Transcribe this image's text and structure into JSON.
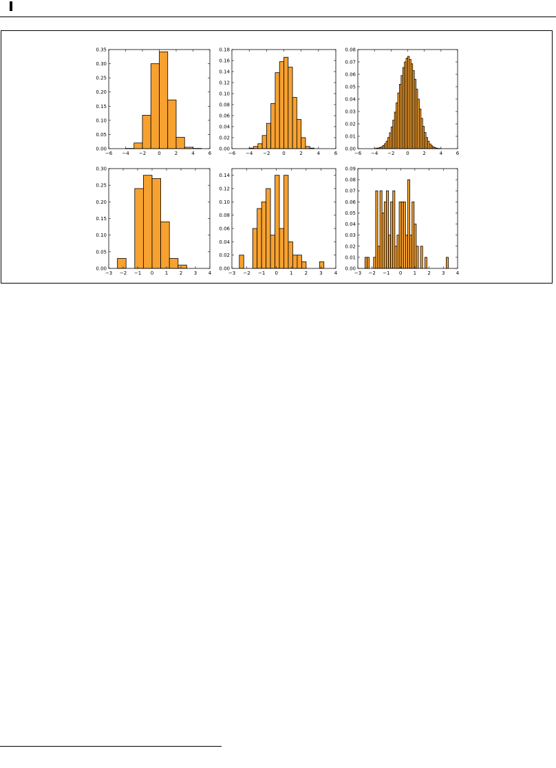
{
  "style": {
    "bar_fill": "#f7a130",
    "bar_stroke": "#000000",
    "axes_color": "#000000"
  },
  "chart_data": [
    {
      "type": "bar",
      "subtype": "histogram",
      "xlim": [
        -6,
        6
      ],
      "ylim": [
        0,
        0.35
      ],
      "xticks": [
        -6,
        -4,
        -2,
        0,
        2,
        4,
        6
      ],
      "yticks": [
        0.0,
        0.05,
        0.1,
        0.15,
        0.2,
        0.25,
        0.3,
        0.35
      ],
      "bin_edges": [
        -6,
        -5,
        -4,
        -3,
        -2,
        -1,
        0,
        1,
        2,
        3,
        4,
        5
      ],
      "values": [
        0,
        0,
        0.001,
        0.02,
        0.118,
        0.3,
        0.342,
        0.172,
        0.04,
        0.005,
        0.001
      ],
      "grid": false
    },
    {
      "type": "bar",
      "subtype": "histogram",
      "xlim": [
        -6,
        6
      ],
      "ylim": [
        0,
        0.18
      ],
      "xticks": [
        -6,
        -4,
        -2,
        0,
        2,
        4,
        6
      ],
      "yticks": [
        0.0,
        0.02,
        0.04,
        0.06,
        0.08,
        0.1,
        0.12,
        0.14,
        0.16,
        0.18
      ],
      "bin_edges": [
        -4.5,
        -4,
        -3.5,
        -3,
        -2.5,
        -2,
        -1.5,
        -1,
        -0.5,
        0,
        0.5,
        1,
        1.5,
        2,
        2.5,
        3,
        3.5
      ],
      "values": [
        0,
        0.001,
        0.004,
        0.009,
        0.024,
        0.046,
        0.082,
        0.138,
        0.158,
        0.166,
        0.148,
        0.093,
        0.053,
        0.02,
        0.004,
        0.001
      ],
      "grid": false
    },
    {
      "type": "bar",
      "subtype": "histogram",
      "xlim": [
        -6,
        6
      ],
      "ylim": [
        0,
        0.08
      ],
      "xticks": [
        -6,
        -4,
        -2,
        0,
        2,
        4,
        6
      ],
      "yticks": [
        0.0,
        0.01,
        0.02,
        0.03,
        0.04,
        0.05,
        0.06,
        0.07,
        0.08
      ],
      "bin_edges": [
        -4,
        -3.8,
        -3.6,
        -3.4,
        -3.2,
        -3,
        -2.8,
        -2.6,
        -2.4,
        -2.2,
        -2,
        -1.8,
        -1.6,
        -1.4,
        -1.2,
        -1,
        -0.8,
        -0.6,
        -0.4,
        -0.2,
        0,
        0.2,
        0.4,
        0.6,
        0.8,
        1,
        1.2,
        1.4,
        1.6,
        1.8,
        2,
        2.2,
        2.4,
        2.6,
        2.8,
        3,
        3.2,
        3.4,
        3.6,
        3.8,
        4
      ],
      "values": [
        0.0002,
        0.0004,
        0.0006,
        0.001,
        0.0016,
        0.0026,
        0.004,
        0.006,
        0.009,
        0.0128,
        0.0175,
        0.023,
        0.0295,
        0.037,
        0.045,
        0.052,
        0.059,
        0.0655,
        0.07,
        0.073,
        0.0745,
        0.072,
        0.0685,
        0.063,
        0.056,
        0.048,
        0.04,
        0.032,
        0.0245,
        0.018,
        0.013,
        0.009,
        0.006,
        0.0038,
        0.0024,
        0.0014,
        0.0008,
        0.0004,
        0.0002,
        0.0001
      ],
      "grid": false
    },
    {
      "type": "bar",
      "subtype": "histogram",
      "xlim": [
        -3,
        4
      ],
      "ylim": [
        0,
        0.3
      ],
      "xticks": [
        -3,
        -2,
        -1,
        0,
        1,
        2,
        3,
        4
      ],
      "yticks": [
        0.0,
        0.05,
        0.1,
        0.15,
        0.2,
        0.25,
        0.3
      ],
      "bin_edges": [
        -2.4,
        -1.8,
        -1.2,
        -0.6,
        0.0,
        0.6,
        1.2,
        1.8,
        2.4,
        3.0,
        3.6
      ],
      "values": [
        0.03,
        0,
        0.24,
        0.28,
        0.27,
        0.14,
        0.03,
        0.01,
        0,
        0
      ],
      "note_values": "bin sequence as drawn",
      "grid": false
    },
    {
      "type": "bar",
      "subtype": "histogram",
      "xlim": [
        -3,
        4
      ],
      "ylim": [
        0,
        0.15
      ],
      "xticks": [
        -3,
        -2,
        -1,
        0,
        1,
        2,
        3,
        4
      ],
      "yticks": [
        0.0,
        0.02,
        0.04,
        0.06,
        0.08,
        0.1,
        0.12,
        0.14
      ],
      "bin_edges": [
        -2.5,
        -2.2,
        -1.9,
        -1.6,
        -1.3,
        -1.0,
        -0.7,
        -0.4,
        -0.1,
        0.2,
        0.5,
        0.8,
        1.1,
        1.4,
        1.7,
        2.0,
        2.3,
        2.6,
        2.9,
        3.2,
        3.5
      ],
      "values": [
        0.02,
        0,
        0,
        0.06,
        0.09,
        0.1,
        0.12,
        0.05,
        0.14,
        0.06,
        0.14,
        0.04,
        0.02,
        0.02,
        0.01,
        0,
        0,
        0,
        0.01,
        0
      ],
      "grid": false
    },
    {
      "type": "bar",
      "subtype": "histogram",
      "xlim": [
        -3,
        4
      ],
      "ylim": [
        0,
        0.09
      ],
      "xticks": [
        -3,
        -2,
        -1,
        0,
        1,
        2,
        3,
        4
      ],
      "yticks": [
        0.0,
        0.01,
        0.02,
        0.03,
        0.04,
        0.05,
        0.06,
        0.07,
        0.08,
        0.09
      ],
      "bin_edges": [
        -2.5,
        -2.35,
        -2.2,
        -2.05,
        -1.9,
        -1.75,
        -1.6,
        -1.45,
        -1.3,
        -1.15,
        -1.0,
        -0.85,
        -0.7,
        -0.55,
        -0.4,
        -0.25,
        -0.1,
        0.05,
        0.2,
        0.35,
        0.5,
        0.65,
        0.8,
        0.95,
        1.1,
        1.25,
        1.4,
        1.55,
        1.7,
        1.85,
        2.0,
        2.15,
        2.3,
        2.45,
        2.6,
        2.75,
        2.9,
        3.05,
        3.2,
        3.35,
        3.5
      ],
      "values": [
        0.01,
        0.01,
        0,
        0,
        0.01,
        0.07,
        0.02,
        0.07,
        0.05,
        0.06,
        0.07,
        0.03,
        0.06,
        0.07,
        0.02,
        0.03,
        0.06,
        0.06,
        0.06,
        0.03,
        0.08,
        0.03,
        0.06,
        0.04,
        0.02,
        0,
        0.02,
        0,
        0.01,
        0,
        0,
        0,
        0,
        0,
        0,
        0,
        0,
        0,
        0.01,
        0
      ],
      "grid": false
    }
  ]
}
